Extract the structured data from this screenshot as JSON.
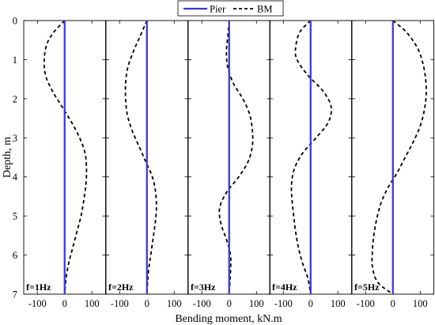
{
  "chart_data": {
    "type": "line",
    "xlabel": "Bending moment, kN.m",
    "ylabel": "Depth, m",
    "ylim": [
      7,
      0
    ],
    "y_ticks": [
      0,
      1,
      2,
      3,
      4,
      5,
      6,
      7
    ],
    "xlim": [
      -150,
      150
    ],
    "x_ticks": [
      -100,
      0,
      100
    ],
    "x_tick_labels": [
      "-100",
      "0",
      "100"
    ],
    "grid": false,
    "legend": {
      "placement": "top-center",
      "entries": [
        {
          "name": "Pier",
          "style": "solid",
          "color": "#3a3ad8"
        },
        {
          "name": "BM",
          "style": "dashed",
          "color": "#000000"
        }
      ]
    },
    "panels": [
      {
        "label": "f=1Hz",
        "pier": {
          "x": [
            0,
            0
          ],
          "y": [
            0,
            7
          ]
        },
        "bm": {
          "y": [
            0,
            0.3,
            0.6,
            1.0,
            1.4,
            1.8,
            2.2,
            2.6,
            3.0,
            3.4,
            3.8,
            4.2,
            4.6,
            5.0,
            5.4,
            5.8,
            6.2,
            6.6,
            7.0
          ],
          "x": [
            0,
            -40,
            -65,
            -75,
            -70,
            -45,
            -10,
            25,
            55,
            75,
            80,
            78,
            70,
            60,
            45,
            30,
            15,
            5,
            0
          ]
        }
      },
      {
        "label": "f=2Hz",
        "pier": {
          "x": [
            0,
            0
          ],
          "y": [
            0,
            7
          ]
        },
        "bm": {
          "y": [
            0,
            0.4,
            0.8,
            1.2,
            1.6,
            2.0,
            2.4,
            2.8,
            3.2,
            3.6,
            4.0,
            4.4,
            4.8,
            5.2,
            5.6,
            6.0,
            6.4,
            7.0
          ],
          "x": [
            0,
            -25,
            -50,
            -70,
            -78,
            -78,
            -72,
            -55,
            -30,
            -5,
            20,
            32,
            35,
            30,
            22,
            14,
            6,
            0
          ]
        }
      },
      {
        "label": "f=3Hz",
        "pier": {
          "x": [
            0,
            0
          ],
          "y": [
            0,
            7
          ]
        },
        "bm": {
          "y": [
            0,
            0.4,
            0.8,
            1.2,
            1.6,
            2.0,
            2.4,
            2.8,
            3.2,
            3.6,
            4.0,
            4.4,
            4.8,
            5.2,
            5.6,
            6.0,
            6.4,
            7.0
          ],
          "x": [
            0,
            -5,
            -10,
            -5,
            15,
            50,
            75,
            85,
            85,
            70,
            35,
            -10,
            -35,
            -30,
            -10,
            5,
            5,
            0
          ]
        }
      },
      {
        "label": "f=4Hz",
        "pier": {
          "x": [
            0,
            0
          ],
          "y": [
            0,
            7
          ]
        },
        "bm": {
          "y": [
            0,
            0.3,
            0.7,
            1.0,
            1.4,
            1.8,
            2.2,
            2.6,
            3.0,
            3.4,
            3.8,
            4.2,
            4.6,
            5.0,
            5.4,
            5.8,
            6.2,
            6.6,
            7.0
          ],
          "x": [
            0,
            -40,
            -55,
            -50,
            -10,
            45,
            75,
            65,
            20,
            -30,
            -60,
            -70,
            -68,
            -62,
            -55,
            -45,
            -30,
            -10,
            0
          ]
        }
      },
      {
        "label": "f=5Hz",
        "pier": {
          "x": [
            0,
            0
          ],
          "y": [
            0,
            7
          ]
        },
        "bm": {
          "y": [
            0,
            0.3,
            0.7,
            1.1,
            1.5,
            1.9,
            2.3,
            2.7,
            3.1,
            3.5,
            3.9,
            4.3,
            4.7,
            5.1,
            5.5,
            5.9,
            6.3,
            6.7,
            7.0
          ],
          "x": [
            0,
            50,
            90,
            110,
            120,
            122,
            115,
            100,
            75,
            45,
            15,
            -20,
            -45,
            -60,
            -70,
            -75,
            -75,
            -55,
            0
          ]
        }
      }
    ]
  }
}
